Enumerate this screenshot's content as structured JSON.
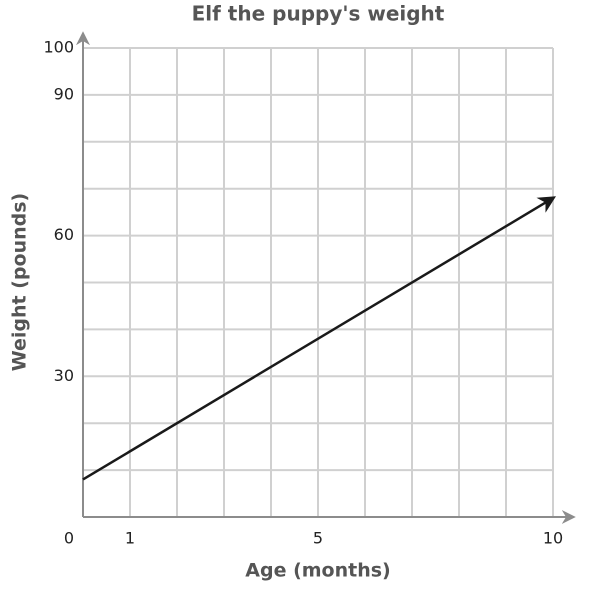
{
  "chart_data": {
    "type": "line",
    "title": "Elf the puppy's weight",
    "x_label": "Age (months)",
    "y_label": "Weight (pounds)",
    "xlim": [
      0,
      10
    ],
    "ylim": [
      0,
      100
    ],
    "xticks": [
      0,
      1,
      5,
      10
    ],
    "yticks": [
      30,
      60,
      90,
      100
    ],
    "xgrid": [
      1,
      2,
      3,
      4,
      5,
      6,
      7,
      8,
      9,
      10
    ],
    "ygrid": [
      10,
      20,
      30,
      40,
      50,
      60,
      70,
      80,
      90,
      100
    ],
    "grid_color": "#d0d0d0",
    "axis_color": "#8c8c8c",
    "series": [
      {
        "color": "#1a1a1a",
        "x": [
          0,
          10
        ],
        "values": [
          8,
          68
        ]
      }
    ]
  }
}
